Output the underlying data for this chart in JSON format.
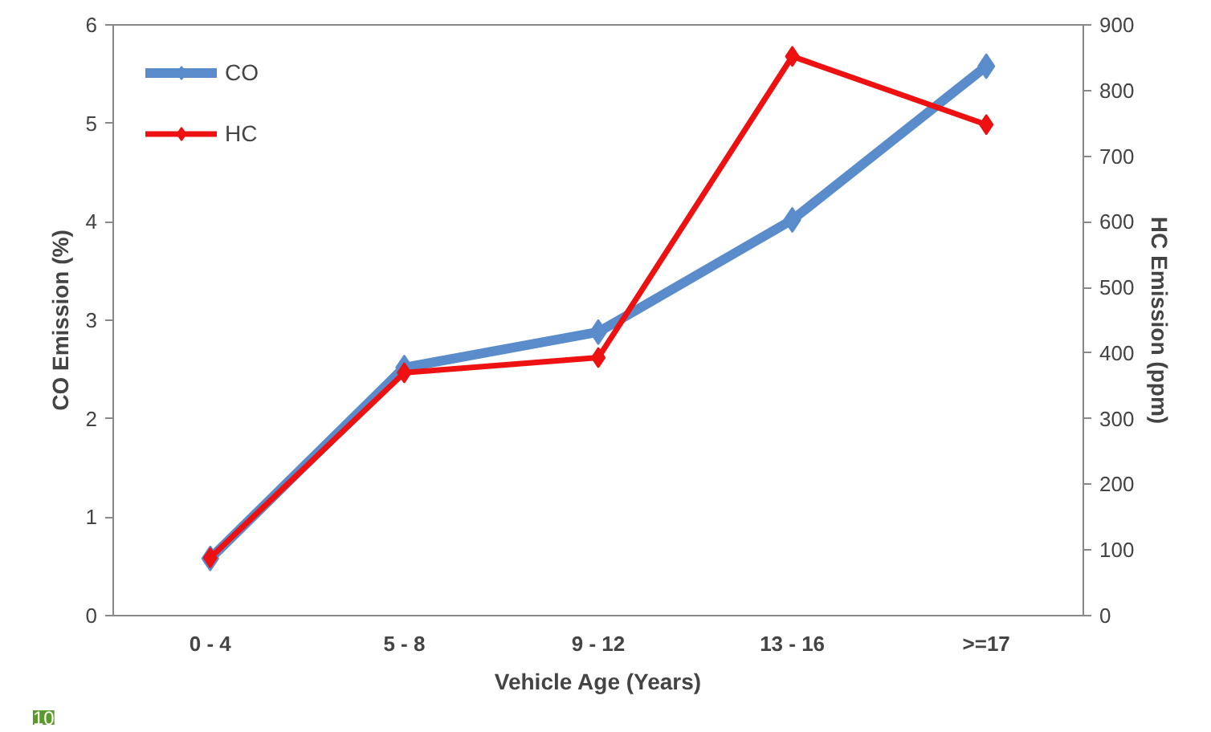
{
  "chart_data": {
    "type": "line",
    "xlabel": "Vehicle Age (Years)",
    "ylabel": "CO Emission (%)",
    "y2label": "HC Emission (ppm)",
    "categories": [
      "0 - 4",
      "5 - 8",
      "9 - 12",
      "13 - 16",
      ">=17"
    ],
    "series": [
      {
        "name": "CO",
        "color": "#5a8ccc",
        "values": [
          0.58,
          2.52,
          2.88,
          4.02,
          5.58
        ]
      },
      {
        "name": "HC",
        "color": "#ee1111",
        "values": [
          88,
          370,
          393,
          852,
          748
        ],
        "axis": "y2"
      }
    ],
    "ylim": [
      0,
      6
    ],
    "yticks": [
      0,
      1,
      2,
      3,
      4,
      5,
      6
    ],
    "y2lim": [
      0,
      900
    ],
    "y2ticks": [
      0,
      100,
      200,
      300,
      400,
      500,
      600,
      700,
      800,
      900
    ],
    "marker": "diamond",
    "line_style": "solid",
    "legend": "top left",
    "grid": false,
    "annotations": [
      "10"
    ]
  }
}
